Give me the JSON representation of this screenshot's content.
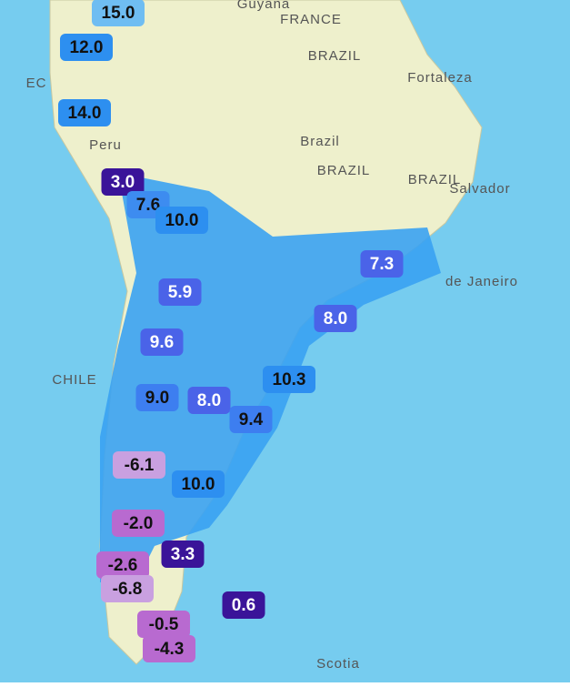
{
  "map": {
    "place_labels": [
      {
        "text": "Guyana"
      },
      {
        "text": "FRANCE"
      },
      {
        "text": "BRAZIL"
      },
      {
        "text": "Fortaleza"
      },
      {
        "text": "Brazil"
      },
      {
        "text": "BRAZIL"
      },
      {
        "text": "BRAZIL"
      },
      {
        "text": "Salvador"
      },
      {
        "text": "Peru"
      },
      {
        "text": "CHILE"
      },
      {
        "text": "de Janeiro"
      },
      {
        "text": "Scotia"
      },
      {
        "text": "EC"
      }
    ],
    "badges": [
      {
        "text": "15.0",
        "color": "#6fbdf2"
      },
      {
        "text": "12.0",
        "color": "#2d8ff0"
      },
      {
        "text": "14.0",
        "color": "#2d8ff0"
      },
      {
        "text": "3.0",
        "color": "#3a1499"
      },
      {
        "text": "7.6",
        "color": "#3d8cf0"
      },
      {
        "text": "10.0",
        "color": "#2d8ff0"
      },
      {
        "text": "5.9",
        "color": "#4a63e8"
      },
      {
        "text": "9.6",
        "color": "#4a63e8"
      },
      {
        "text": "9.0",
        "color": "#3d7ef0"
      },
      {
        "text": "8.0",
        "color": "#4a63e8"
      },
      {
        "text": "9.4",
        "color": "#3d7ef0"
      },
      {
        "text": "10.3",
        "color": "#2d8ff0"
      },
      {
        "text": "7.3",
        "color": "#4a63e8"
      },
      {
        "text": "8.0",
        "color": "#4a63e8"
      },
      {
        "text": "10.0",
        "color": "#2d8ff0"
      },
      {
        "text": "-6.1",
        "color": "#c9a0e0"
      },
      {
        "text": "-2.0",
        "color": "#b86ad0"
      },
      {
        "text": "3.3",
        "color": "#3a1499"
      },
      {
        "text": "-2.6",
        "color": "#b86ad0"
      },
      {
        "text": "-6.8",
        "color": "#c9a0e0"
      },
      {
        "text": "0.6",
        "color": "#3a1499"
      },
      {
        "text": "-0.5",
        "color": "#b86ad0"
      },
      {
        "text": "-4.3",
        "color": "#b86ad0"
      }
    ]
  }
}
